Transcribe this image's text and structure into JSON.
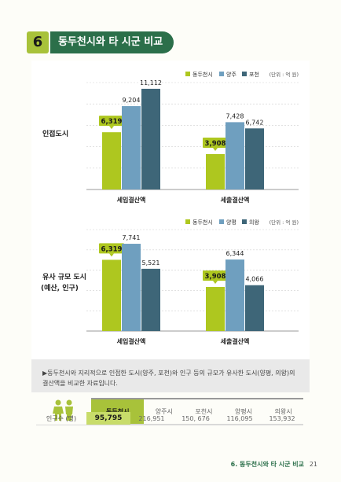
{
  "header": {
    "number": "6",
    "title": "동두천시와 타 시군 비교"
  },
  "chart_data": [
    {
      "type": "bar",
      "row_label": "인접도시",
      "categories": [
        "세입결산액",
        "세출결산액"
      ],
      "series": [
        {
          "name": "동두천시",
          "values": [
            6319,
            3908
          ],
          "color": "#aec71f"
        },
        {
          "name": "양주",
          "values": [
            9204,
            7428
          ],
          "color": "#6f9fbf"
        },
        {
          "name": "포천",
          "values": [
            11112,
            6742
          ],
          "color": "#3e6678"
        }
      ],
      "value_labels": [
        [
          "6,319",
          "9,204",
          "11,112"
        ],
        [
          "3,908",
          "7,428",
          "6,742"
        ]
      ],
      "unit_note": "(단위 : 억 원)",
      "ylim": [
        0,
        11800
      ]
    },
    {
      "type": "bar",
      "row_label": "유사 규모 도시",
      "row_label_2": "(예산, 인구)",
      "categories": [
        "세입결산액",
        "세출결산액"
      ],
      "series": [
        {
          "name": "동두천시",
          "values": [
            6319,
            3908
          ],
          "color": "#aec71f"
        },
        {
          "name": "양평",
          "values": [
            7741,
            6344
          ],
          "color": "#6f9fbf"
        },
        {
          "name": "의왕",
          "values": [
            5521,
            4066
          ],
          "color": "#3e6678"
        }
      ],
      "value_labels": [
        [
          "6,319",
          "7,741",
          "5,521"
        ],
        [
          "3,908",
          "6,344",
          "4,066"
        ]
      ],
      "unit_note": "(단위 : 억 원)",
      "ylim": [
        0,
        9000
      ]
    }
  ],
  "note": "▶동두천시와 지리적으로 인접한 도시(양주, 포천)와 인구 등의 규모가 유사한 도시(양평, 의왕)의 결산액을 비교한 자료입니다.",
  "population": {
    "headers": [
      "동두천시",
      "양주시",
      "포천시",
      "양평시",
      "의왕시"
    ],
    "row_label": "인구수 (명)",
    "values": [
      "95,795",
      "216,951",
      "150, 676",
      "116,095",
      "153,932"
    ]
  },
  "footer": {
    "text": "6. 동두천시와 타 시군 비교",
    "page": "21"
  }
}
